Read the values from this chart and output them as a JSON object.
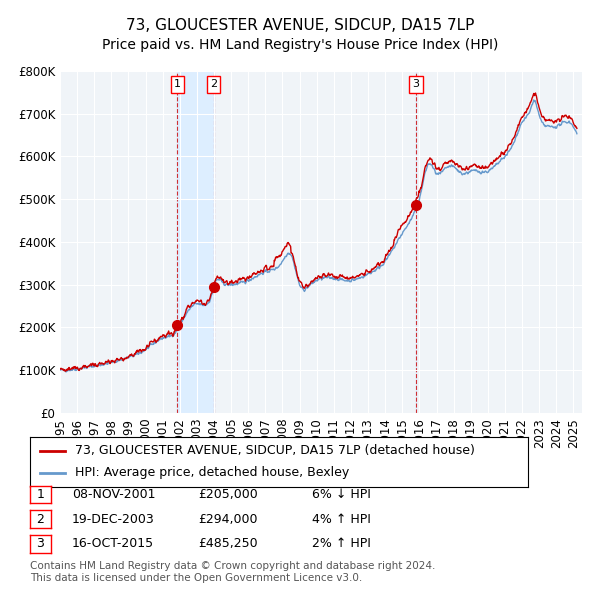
{
  "title": "73, GLOUCESTER AVENUE, SIDCUP, DA15 7LP",
  "subtitle": "Price paid vs. HM Land Registry's House Price Index (HPI)",
  "xlabel": "",
  "ylabel": "",
  "ylim": [
    0,
    800000
  ],
  "yticks": [
    0,
    100000,
    200000,
    300000,
    400000,
    500000,
    600000,
    700000,
    800000
  ],
  "ytick_labels": [
    "£0",
    "£100K",
    "£200K",
    "£300K",
    "£400K",
    "£500K",
    "£600K",
    "£700K",
    "£800K"
  ],
  "xlim_start": 1995.0,
  "xlim_end": 2025.5,
  "xtick_years": [
    1995,
    1996,
    1997,
    1998,
    1999,
    2000,
    2001,
    2002,
    2003,
    2004,
    2005,
    2006,
    2007,
    2008,
    2009,
    2010,
    2011,
    2012,
    2013,
    2014,
    2015,
    2016,
    2017,
    2018,
    2019,
    2020,
    2021,
    2022,
    2023,
    2024,
    2025
  ],
  "hpi_color": "#6699cc",
  "price_color": "#cc0000",
  "sale_marker_color": "#cc0000",
  "background_color": "#f0f4f8",
  "grid_color": "#ffffff",
  "sale_band_color": "#ddeeff",
  "sale_dashed_color": "#cc0000",
  "legend_label_price": "73, GLOUCESTER AVENUE, SIDCUP, DA15 7LP (detached house)",
  "legend_label_hpi": "HPI: Average price, detached house, Bexley",
  "sales": [
    {
      "num": 1,
      "date": "08-NOV-2001",
      "year_x": 2001.86,
      "price": 205000,
      "desc": "6% ↓ HPI"
    },
    {
      "num": 2,
      "date": "19-DEC-2003",
      "year_x": 2003.97,
      "price": 294000,
      "desc": "4% ↑ HPI"
    },
    {
      "num": 3,
      "date": "16-OCT-2015",
      "year_x": 2015.79,
      "price": 485250,
      "desc": "2% ↑ HPI"
    }
  ],
  "footer": "Contains HM Land Registry data © Crown copyright and database right 2024.\nThis data is licensed under the Open Government Licence v3.0.",
  "title_fontsize": 11,
  "subtitle_fontsize": 10,
  "tick_fontsize": 8.5,
  "legend_fontsize": 9,
  "table_fontsize": 9,
  "footer_fontsize": 7.5
}
